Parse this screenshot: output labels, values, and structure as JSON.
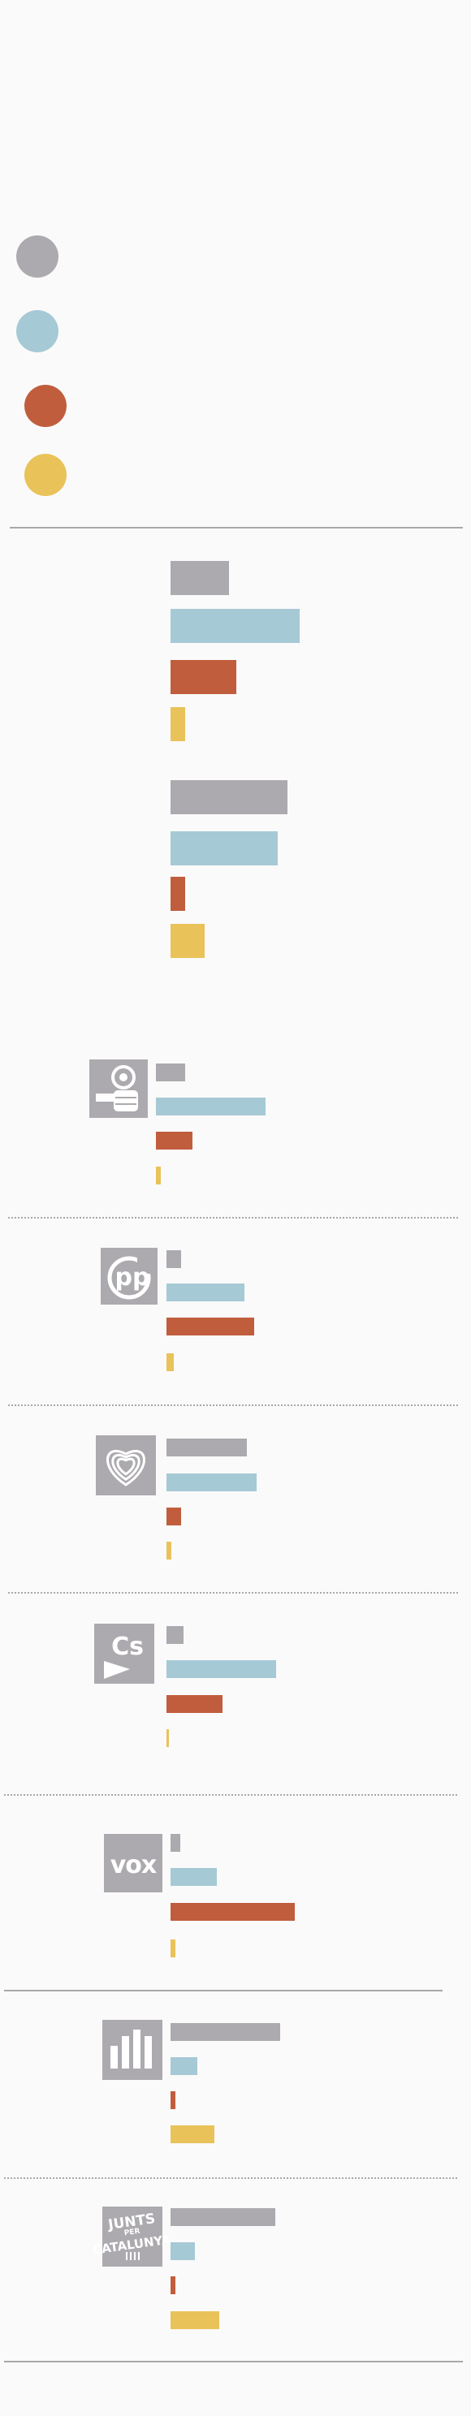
{
  "colors": {
    "grey": "#acaaae",
    "blue": "#a6c9d6",
    "red": "#c05d3d",
    "yellow": "#e9c259",
    "rule": "#555555",
    "logo_bg": "#acaaae"
  },
  "legend": {
    "items": [
      {
        "color": "#acaaae",
        "label": ""
      },
      {
        "color": "#a6c9d6",
        "label": ""
      },
      {
        "color": "#c05d3d",
        "label": ""
      },
      {
        "color": "#e9c259",
        "label": ""
      }
    ]
  },
  "chart_data": {
    "type": "bar",
    "orientation": "horizontal",
    "title": "",
    "xlabel": "",
    "ylabel": "",
    "xlim": [
      0,
      100
    ],
    "grid": false,
    "legend_position": "top-left",
    "series_colors": [
      "#acaaae",
      "#a6c9d6",
      "#c05d3d",
      "#e9c259"
    ],
    "groups": [
      {
        "name": "",
        "logo": "",
        "values": [
          24,
          53,
          27,
          6
        ]
      },
      {
        "name": "",
        "logo": "",
        "values": [
          48,
          44,
          6,
          14
        ]
      },
      {
        "name": "",
        "logo": "psc-rose-fist-icon",
        "values": [
          12,
          45,
          15,
          2
        ]
      },
      {
        "name": "",
        "logo": "pp-logo-icon",
        "values": [
          6,
          32,
          36,
          3
        ]
      },
      {
        "name": "",
        "logo": "comuns-heart-icon",
        "values": [
          33,
          37,
          6,
          2
        ]
      },
      {
        "name": "",
        "logo": "cs-logo-icon",
        "values": [
          7,
          45,
          23,
          1
        ]
      },
      {
        "name": "",
        "logo": "vox-logo-icon",
        "values": [
          4,
          19,
          51,
          2
        ]
      },
      {
        "name": "",
        "logo": "erc-logo-icon",
        "values": [
          45,
          11,
          2,
          18
        ]
      },
      {
        "name": "",
        "logo": "junts-logo-icon",
        "values": [
          43,
          10,
          2,
          20
        ]
      }
    ]
  },
  "logos": {
    "pp_text": "pp",
    "cs_text": "Cs",
    "vox_text": "vox",
    "junts_lines": [
      "JUNTS",
      "PER",
      "CATALUNYA"
    ]
  }
}
